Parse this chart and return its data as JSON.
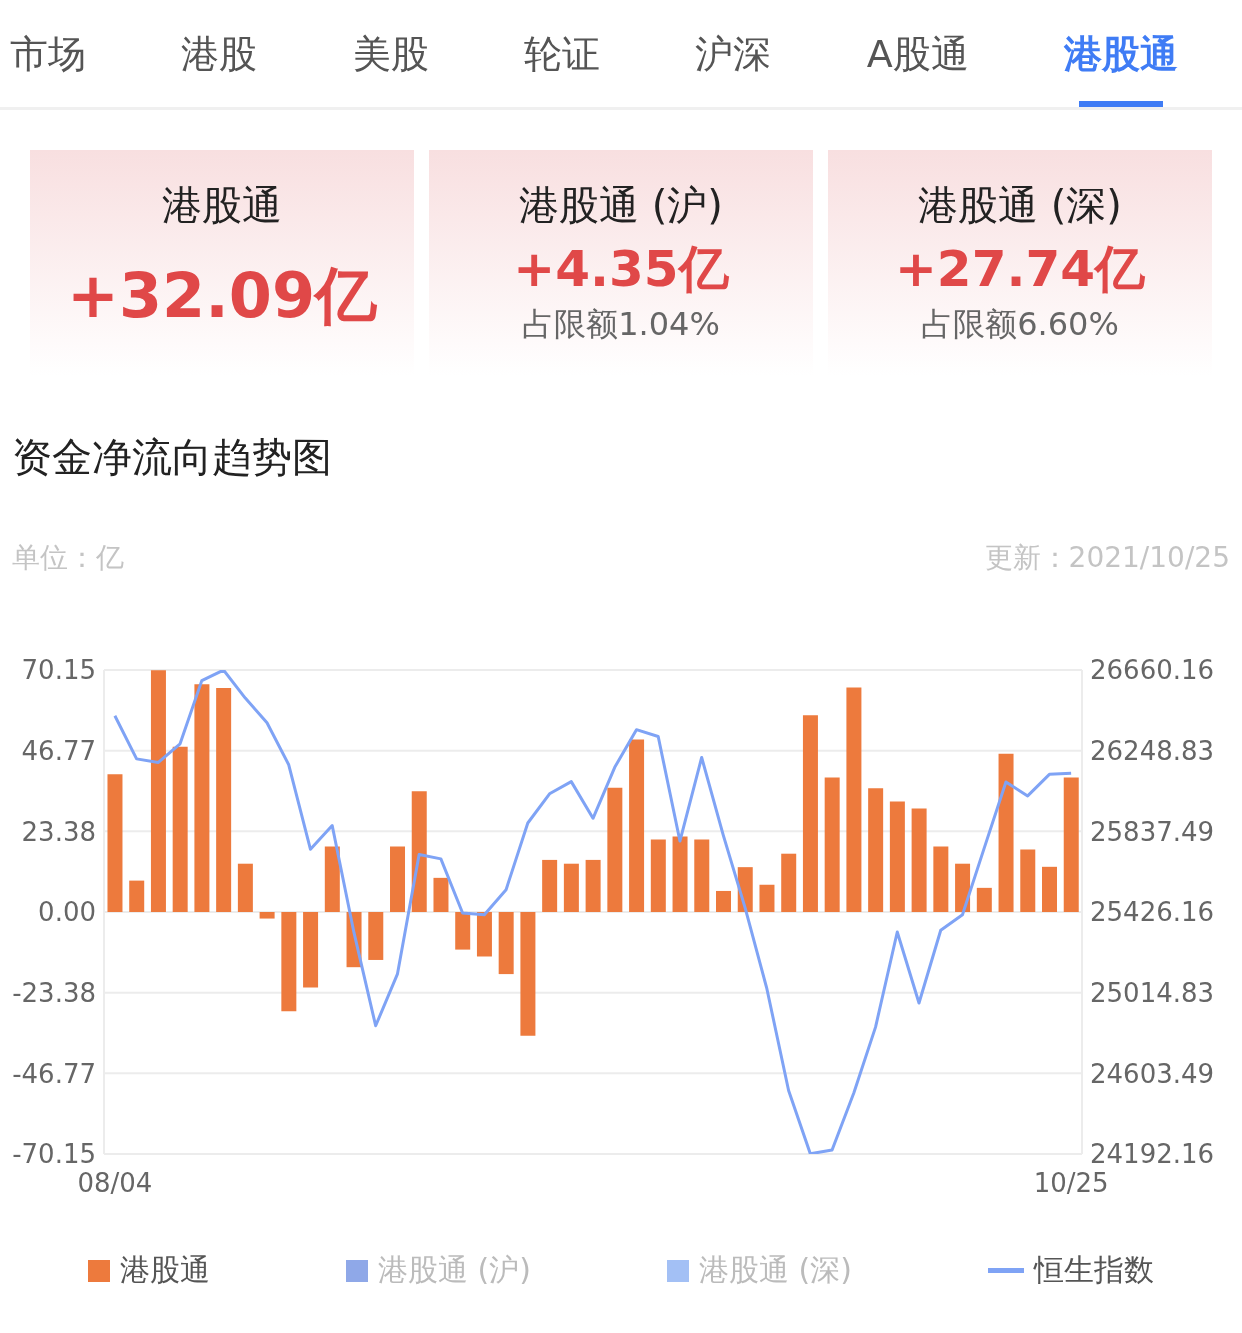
{
  "chart_data": [
    {
      "type": "other",
      "annotations": [
        "市场",
        "港股",
        "美股",
        "轮证",
        "沪深",
        "A股通",
        "港股通"
      ]
    },
    {
      "type": "other",
      "title": "港股通",
      "annotations": [
        "+32.09亿"
      ]
    },
    {
      "type": "other",
      "title": "港股通 (沪)",
      "annotations": [
        "+4.35亿",
        "占限额1.04%"
      ]
    },
    {
      "type": "other",
      "title": "港股通 (深)",
      "annotations": [
        "+27.74亿",
        "占限额6.60%"
      ]
    },
    {
      "type": "bar",
      "title": "资金净流向趋势图",
      "ylabel": "单位：亿",
      "annotations": [
        "更新：2021/10/25"
      ],
      "categories": [
        "08/04",
        null,
        null,
        null,
        null,
        null,
        null,
        null,
        null,
        null,
        null,
        null,
        null,
        null,
        null,
        null,
        null,
        null,
        null,
        null,
        null,
        null,
        null,
        null,
        null,
        null,
        null,
        null,
        null,
        null,
        null,
        null,
        null,
        null,
        null,
        null,
        null,
        null,
        null,
        null,
        null,
        null,
        null,
        null,
        "10/25"
      ],
      "series": [
        {
          "name": "港股通",
          "color": "#ed7a3d",
          "values": [
            39.9,
            9.1,
            70.1,
            47.9,
            66.0,
            64.9,
            14.0,
            -1.9,
            -28.8,
            -21.9,
            19.0,
            -16.0,
            -13.9,
            19.0,
            35.0,
            9.9,
            -10.9,
            -12.9,
            -18.0,
            -35.9,
            15.1,
            14.0,
            15.1,
            36.0,
            50.0,
            21.0,
            21.9,
            21.0,
            6.1,
            13.0,
            7.9,
            16.9,
            57.0,
            39.0,
            65.1,
            35.9,
            32.0,
            30.0,
            19.0,
            14.0,
            7.0,
            45.9,
            18.1,
            13.1,
            39.0
          ]
        },
        {
          "name": "港股通 (沪)",
          "color": "#8fa8e8",
          "values": [
            null,
            null,
            null,
            null,
            null,
            null,
            null,
            null,
            null,
            null,
            null,
            null,
            null,
            null,
            null,
            null,
            null,
            null,
            null,
            null,
            null,
            null,
            null,
            null,
            null,
            null,
            null,
            null,
            null,
            null,
            null,
            null,
            null,
            null,
            null,
            null,
            null,
            null,
            null,
            null,
            null,
            null,
            null,
            null,
            null
          ]
        },
        {
          "name": "港股通 (深)",
          "color": "#a3c0f5",
          "values": [
            null,
            null,
            null,
            null,
            null,
            null,
            null,
            null,
            null,
            null,
            null,
            null,
            null,
            null,
            null,
            null,
            null,
            null,
            null,
            null,
            null,
            null,
            null,
            null,
            null,
            null,
            null,
            null,
            null,
            null,
            null,
            null,
            null,
            null,
            null,
            null,
            null,
            null,
            null,
            null,
            null,
            null,
            null,
            null,
            null
          ]
        },
        {
          "name": "恒生指数",
          "type": "line",
          "axis": "y2",
          "color": "#7fa3f5",
          "values": [
            26427,
            26207,
            26189,
            26284,
            26606,
            26660,
            26517,
            26391,
            26177,
            25746,
            25867,
            25322,
            24846,
            25109,
            25719,
            25697,
            25421,
            25412,
            25540,
            25880,
            26029,
            26091,
            25904,
            26164,
            26356,
            26321,
            25788,
            26214,
            25816,
            25447,
            25035,
            24516,
            24193,
            24213,
            24503,
            24839,
            25324,
            24962,
            25333,
            25412,
            25752,
            26089,
            26018,
            26128,
            26134
          ]
        }
      ],
      "ylim": [
        -70.15,
        70.15
      ],
      "yticks": [
        -70.15,
        -46.77,
        -23.38,
        {
          "value": 0,
          "label": "0.00"
        },
        23.38,
        46.77,
        70.15
      ],
      "y2lim": [
        24192.16,
        26660.16
      ],
      "y2ticks": [
        24192.16,
        24603.49,
        25014.83,
        25426.16,
        25837.49,
        26248.83,
        26660.16
      ],
      "grid": "y",
      "legend": "bottom"
    }
  ]
}
